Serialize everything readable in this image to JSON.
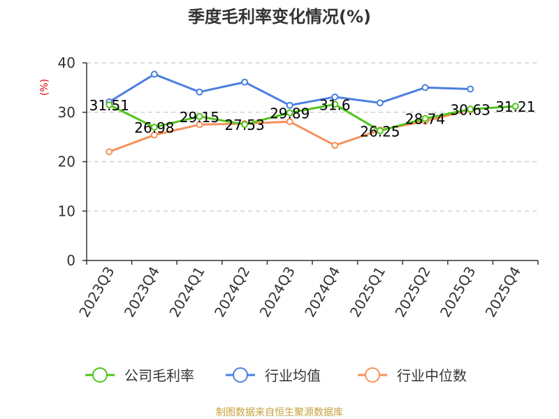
{
  "chart_data": {
    "type": "line",
    "title": "季度毛利率变化情况(%)",
    "ylabel": "(%)",
    "ylim": [
      0,
      40
    ],
    "yticks": [
      0,
      10,
      20,
      30,
      40
    ],
    "grid": true,
    "legend_position": "bottom",
    "categories": [
      "2023Q3",
      "2023Q4",
      "2024Q1",
      "2024Q2",
      "2024Q3",
      "2024Q4",
      "2025Q1",
      "2025Q2",
      "2025Q3",
      "2025Q4"
    ],
    "series": [
      {
        "name": "公司毛利率",
        "color": "#52c41a",
        "values": [
          31.51,
          26.98,
          29.15,
          27.53,
          29.89,
          31.6,
          26.25,
          28.74,
          30.63,
          31.21
        ],
        "data_labels": [
          "31.51",
          "26.98",
          "29.15",
          "27.53",
          "29.89",
          "31.6",
          "26.25",
          "28.74",
          "30.63",
          "31.21"
        ]
      },
      {
        "name": "行业均值",
        "color": "#4a7fe0",
        "values": [
          32.1,
          37.7,
          34.1,
          36.1,
          31.4,
          33.1,
          31.9,
          35.0,
          34.7,
          null
        ]
      },
      {
        "name": "行业中位数",
        "color": "#f5915a",
        "values": [
          22.0,
          25.4,
          27.5,
          27.7,
          28.1,
          23.3,
          26.4,
          28.2,
          30.5,
          null
        ]
      }
    ],
    "source": "制图数据来自恒生聚源数据库"
  }
}
